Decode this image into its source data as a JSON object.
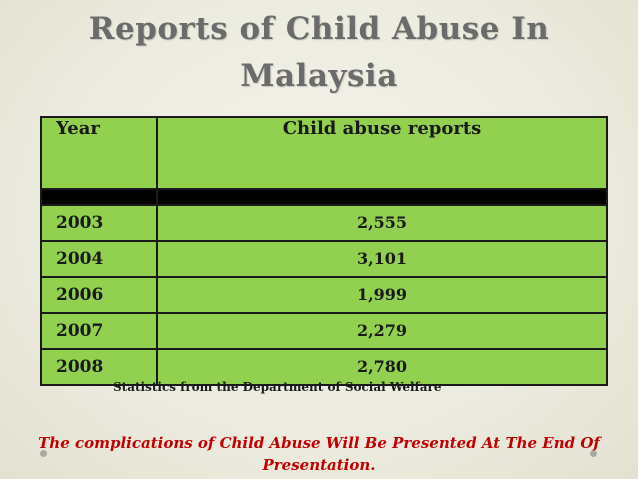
{
  "title": {
    "line1": "Reports of Child Abuse In",
    "line2": "Malaysia"
  },
  "table": {
    "headers": [
      "Year",
      "Child abuse reports"
    ],
    "rows": [
      {
        "year": "2003",
        "reports": "2,555"
      },
      {
        "year": "2004",
        "reports": "3,101"
      },
      {
        "year": "2006",
        "reports": "1,999"
      },
      {
        "year": "2007",
        "reports": "2,279"
      },
      {
        "year": "2008",
        "reports": "2,780"
      }
    ]
  },
  "source_note": "Statistics from the Department of Social Welfare",
  "footer_note": {
    "line1": "The complications of Child Abuse Will Be Presented At The End Of",
    "line2": "Presentation."
  },
  "colors": {
    "table_fill": "#92d050",
    "title_text": "#6b6b6b",
    "footer_text": "#c00000"
  }
}
